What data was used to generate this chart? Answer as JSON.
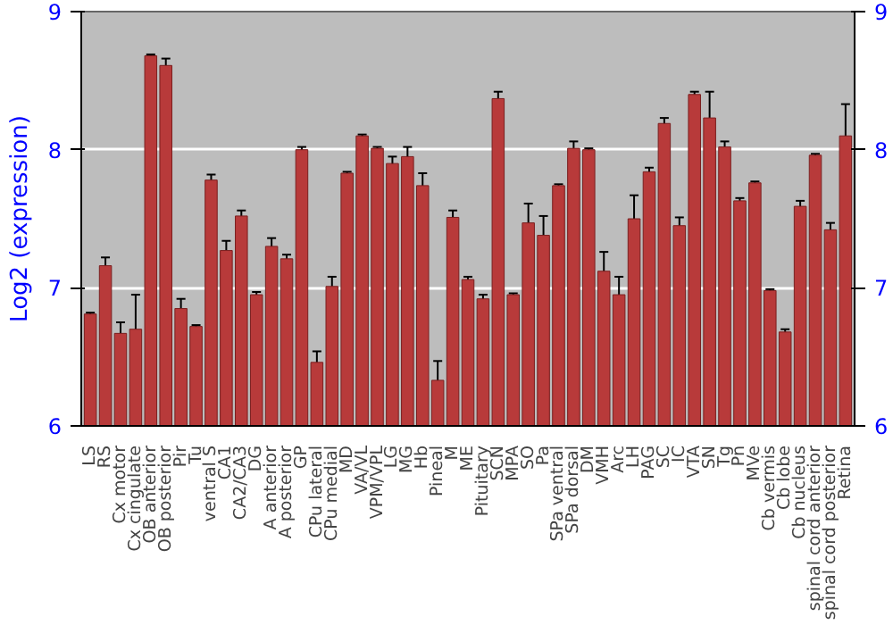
{
  "chart_data": {
    "type": "bar",
    "ylabel": "Log2 (expression)",
    "categories": [
      "LS",
      "RS",
      "Cx motor",
      "Cx cingulate",
      "OB anterior",
      "OB posterior",
      "Pir",
      "Tu",
      "ventral S",
      "CA1",
      "CA2/CA3",
      "DG",
      "A anterior",
      "A posterior",
      "GP",
      "CPu lateral",
      "CPu medial",
      "MD",
      "VA/VL",
      "VPM/VPL",
      "LG",
      "MG",
      "Hb",
      "Pineal",
      "M",
      "ME",
      "Pituitary",
      "SCN",
      "MPA",
      "SO",
      "Pa",
      "SPa ventral",
      "SPa dorsal",
      "DM",
      "VMH",
      "Arc",
      "LH",
      "PAG",
      "SC",
      "IC",
      "VTA",
      "SN",
      "Tg",
      "Pn",
      "MVe",
      "Cb vermis",
      "Cb lobe",
      "Cb nucleus",
      "spinal cord anterior",
      "spinal cord posterior",
      "Retina"
    ],
    "values": [
      6.81,
      7.16,
      6.67,
      6.7,
      8.68,
      8.61,
      6.85,
      6.72,
      7.78,
      7.27,
      7.52,
      6.95,
      7.3,
      7.21,
      8.0,
      6.46,
      7.01,
      7.83,
      8.1,
      8.01,
      7.9,
      7.95,
      7.74,
      6.33,
      7.51,
      7.06,
      6.92,
      8.37,
      6.95,
      7.47,
      7.38,
      7.74,
      8.01,
      8.0,
      7.12,
      6.95,
      7.5,
      7.84,
      8.19,
      7.45,
      8.4,
      8.23,
      8.02,
      7.63,
      7.76,
      6.98,
      6.68,
      7.59,
      7.96,
      7.42,
      8.1
    ],
    "errors": [
      0.01,
      0.06,
      0.08,
      0.25,
      0.01,
      0.05,
      0.07,
      0.01,
      0.04,
      0.07,
      0.04,
      0.02,
      0.06,
      0.03,
      0.02,
      0.08,
      0.07,
      0.01,
      0.01,
      0.01,
      0.05,
      0.07,
      0.09,
      0.14,
      0.05,
      0.02,
      0.03,
      0.05,
      0.01,
      0.14,
      0.14,
      0.01,
      0.05,
      0.01,
      0.14,
      0.13,
      0.17,
      0.03,
      0.04,
      0.06,
      0.02,
      0.19,
      0.04,
      0.02,
      0.01,
      0.01,
      0.02,
      0.04,
      0.01,
      0.05,
      0.23
    ],
    "color": "#b83a3a",
    "ylim": [
      6,
      9
    ],
    "yticks": [
      6,
      7,
      8,
      9
    ],
    "y2lim": [
      6,
      9
    ],
    "y2ticks": [
      6,
      7,
      8,
      9
    ],
    "grid": "y"
  }
}
